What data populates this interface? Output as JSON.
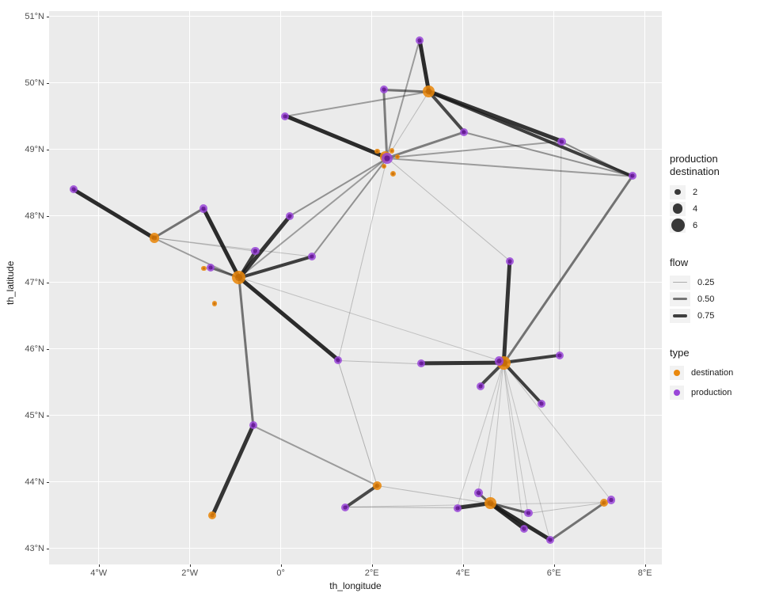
{
  "axes": {
    "x": {
      "title": "th_longitude",
      "ticks": [
        {
          "label": "4°W",
          "value": -4
        },
        {
          "label": "2°W",
          "value": -2
        },
        {
          "label": "0°",
          "value": 0
        },
        {
          "label": "2°E",
          "value": 2
        },
        {
          "label": "4°E",
          "value": 4
        },
        {
          "label": "6°E",
          "value": 6
        },
        {
          "label": "8°E",
          "value": 8
        }
      ]
    },
    "y": {
      "title": "th_latitude",
      "ticks": [
        {
          "label": "43°N",
          "value": 43
        },
        {
          "label": "44°N",
          "value": 44
        },
        {
          "label": "45°N",
          "value": 45
        },
        {
          "label": "46°N",
          "value": 46
        },
        {
          "label": "47°N",
          "value": 47
        },
        {
          "label": "48°N",
          "value": 48
        },
        {
          "label": "49°N",
          "value": 49
        },
        {
          "label": "50°N",
          "value": 50
        },
        {
          "label": "51°N",
          "value": 51
        }
      ]
    }
  },
  "legend": {
    "size": {
      "title_line1": "production",
      "title_line2": "destination",
      "entries": [
        {
          "label": "2",
          "value": 2
        },
        {
          "label": "4",
          "value": 4
        },
        {
          "label": "6",
          "value": 6
        }
      ]
    },
    "flow": {
      "title": "flow",
      "entries": [
        {
          "label": "0.25",
          "value": 0.25
        },
        {
          "label": "0.50",
          "value": 0.5
        },
        {
          "label": "0.75",
          "value": 0.75
        }
      ]
    },
    "type": {
      "title": "type",
      "entries": [
        {
          "label": "destination",
          "color": "#E9880D"
        },
        {
          "label": "production",
          "color": "#9946D8"
        }
      ]
    }
  },
  "colors": {
    "production": "#9946D8",
    "destination": "#E9880D",
    "panel_bg": "#EBEBEB",
    "grid": "#FFFFFF",
    "edge": "#1A1A1A",
    "tick_text": "#4D4D4D"
  },
  "chart_data": {
    "type": "scatter",
    "subtype": "flow-network-map",
    "xlabel": "th_longitude",
    "ylabel": "th_latitude",
    "xlim": [
      -5.09,
      8.37
    ],
    "ylim": [
      42.76,
      51.08
    ],
    "grid": "major-white-on-gray",
    "legend_position": "right",
    "nodes": [
      {
        "id": "p1",
        "lon": -4.55,
        "lat": 48.4,
        "type": "production",
        "size": 3
      },
      {
        "id": "p2",
        "lon": -1.7,
        "lat": 48.11,
        "type": "production",
        "size": 3
      },
      {
        "id": "p3",
        "lon": 0.1,
        "lat": 49.5,
        "type": "production",
        "size": 3
      },
      {
        "id": "p4",
        "lon": 3.05,
        "lat": 50.64,
        "type": "production",
        "size": 3
      },
      {
        "id": "p5",
        "lon": 2.26,
        "lat": 49.9,
        "type": "production",
        "size": 3
      },
      {
        "id": "p6",
        "lon": 4.03,
        "lat": 49.26,
        "type": "production",
        "size": 3
      },
      {
        "id": "p7",
        "lon": 6.17,
        "lat": 49.12,
        "type": "production",
        "size": 3
      },
      {
        "id": "p8",
        "lon": 7.72,
        "lat": 48.6,
        "type": "production",
        "size": 3
      },
      {
        "id": "p9",
        "lon": 2.33,
        "lat": 48.87,
        "type": "production",
        "size": 4.6
      },
      {
        "id": "p10",
        "lon": 0.19,
        "lat": 48.0,
        "type": "production",
        "size": 3
      },
      {
        "id": "p11",
        "lon": -0.56,
        "lat": 47.47,
        "type": "production",
        "size": 3
      },
      {
        "id": "p12",
        "lon": 0.68,
        "lat": 47.39,
        "type": "production",
        "size": 3
      },
      {
        "id": "p13",
        "lon": -1.55,
        "lat": 47.22,
        "type": "production",
        "size": 3
      },
      {
        "id": "p14",
        "lon": 5.03,
        "lat": 47.32,
        "type": "production",
        "size": 3
      },
      {
        "id": "p15",
        "lon": 1.26,
        "lat": 45.83,
        "type": "production",
        "size": 3
      },
      {
        "id": "p16",
        "lon": 3.09,
        "lat": 45.78,
        "type": "production",
        "size": 3
      },
      {
        "id": "p17",
        "lon": 4.8,
        "lat": 45.82,
        "type": "production",
        "size": 3.6
      },
      {
        "id": "p18",
        "lon": 6.13,
        "lat": 45.9,
        "type": "production",
        "size": 3
      },
      {
        "id": "p19",
        "lon": 4.39,
        "lat": 45.44,
        "type": "production",
        "size": 3
      },
      {
        "id": "p20",
        "lon": 5.73,
        "lat": 45.18,
        "type": "production",
        "size": 3
      },
      {
        "id": "p21",
        "lon": -0.61,
        "lat": 44.85,
        "type": "production",
        "size": 3
      },
      {
        "id": "p22",
        "lon": 1.42,
        "lat": 43.62,
        "type": "production",
        "size": 3
      },
      {
        "id": "p23",
        "lon": 3.88,
        "lat": 43.61,
        "type": "production",
        "size": 3
      },
      {
        "id": "p24",
        "lon": 4.34,
        "lat": 43.84,
        "type": "production",
        "size": 3.4
      },
      {
        "id": "p25",
        "lon": 5.44,
        "lat": 43.53,
        "type": "production",
        "size": 3
      },
      {
        "id": "p26",
        "lon": 5.34,
        "lat": 43.3,
        "type": "production",
        "size": 3
      },
      {
        "id": "p27",
        "lon": 5.92,
        "lat": 43.13,
        "type": "production",
        "size": 3
      },
      {
        "id": "p28",
        "lon": 7.26,
        "lat": 43.73,
        "type": "production",
        "size": 3
      },
      {
        "id": "d1",
        "lon": -2.78,
        "lat": 47.67,
        "type": "destination",
        "size": 4
      },
      {
        "id": "d2",
        "lon": -0.92,
        "lat": 47.07,
        "type": "destination",
        "size": 6
      },
      {
        "id": "d3",
        "lon": 3.25,
        "lat": 49.87,
        "type": "destination",
        "size": 5
      },
      {
        "id": "d4",
        "lon": 2.29,
        "lat": 48.89,
        "type": "destination",
        "size": 4.5
      },
      {
        "id": "d5",
        "lon": 4.9,
        "lat": 45.79,
        "type": "destination",
        "size": 6
      },
      {
        "id": "d6",
        "lon": 4.6,
        "lat": 43.68,
        "type": "destination",
        "size": 5
      },
      {
        "id": "d7",
        "lon": 2.12,
        "lat": 43.95,
        "type": "destination",
        "size": 3.4
      },
      {
        "id": "d8",
        "lon": -1.5,
        "lat": 43.5,
        "type": "destination",
        "size": 3
      },
      {
        "id": "d9",
        "lon": 7.1,
        "lat": 43.69,
        "type": "destination",
        "size": 3.2
      },
      {
        "id": "d10",
        "lon": -1.69,
        "lat": 47.21,
        "type": "destination",
        "size": 1.4
      },
      {
        "id": "d11",
        "lon": -1.46,
        "lat": 46.68,
        "type": "destination",
        "size": 1.4
      },
      {
        "id": "s1",
        "lon": 2.12,
        "lat": 48.97,
        "type": "destination",
        "size": 1.4
      },
      {
        "id": "s2",
        "lon": 2.44,
        "lat": 48.98,
        "type": "destination",
        "size": 1.4
      },
      {
        "id": "s3",
        "lon": 2.57,
        "lat": 48.89,
        "type": "destination",
        "size": 1.2
      },
      {
        "id": "s4",
        "lon": 2.27,
        "lat": 48.75,
        "type": "destination",
        "size": 1.3
      },
      {
        "id": "s5",
        "lon": 2.47,
        "lat": 48.63,
        "type": "destination",
        "size": 1.7
      }
    ],
    "edges": [
      {
        "from": "p1",
        "to": "d1",
        "flow": 0.85
      },
      {
        "from": "p2",
        "to": "d1",
        "flow": 0.5
      },
      {
        "from": "d1",
        "to": "d2",
        "flow": 0.3
      },
      {
        "from": "d2",
        "to": "p2",
        "flow": 0.9
      },
      {
        "from": "d2",
        "to": "p11",
        "flow": 0.75
      },
      {
        "from": "d2",
        "to": "p10",
        "flow": 0.8
      },
      {
        "from": "d2",
        "to": "p12",
        "flow": 0.75
      },
      {
        "from": "d2",
        "to": "p13",
        "flow": 0.55
      },
      {
        "from": "d2",
        "to": "p15",
        "flow": 0.85
      },
      {
        "from": "d2",
        "to": "p21",
        "flow": 0.5
      },
      {
        "from": "d2",
        "to": "p17",
        "flow": 0.12
      },
      {
        "from": "p9",
        "to": "d2",
        "flow": 0.3
      },
      {
        "from": "d1",
        "to": "p11",
        "flow": 0.15
      },
      {
        "from": "d1",
        "to": "p12",
        "flow": 0.15
      },
      {
        "from": "p9",
        "to": "p3",
        "flow": 0.85
      },
      {
        "from": "p3",
        "to": "d3",
        "flow": 0.3
      },
      {
        "from": "p4",
        "to": "d3",
        "flow": 0.9
      },
      {
        "from": "p4",
        "to": "p9",
        "flow": 0.3
      },
      {
        "from": "p5",
        "to": "d3",
        "flow": 0.5
      },
      {
        "from": "p5",
        "to": "p9",
        "flow": 0.45
      },
      {
        "from": "d3",
        "to": "p6",
        "flow": 0.7
      },
      {
        "from": "d3",
        "to": "p7",
        "flow": 0.8
      },
      {
        "from": "d3",
        "to": "p8",
        "flow": 0.75
      },
      {
        "from": "d3",
        "to": "p9",
        "flow": 0.15
      },
      {
        "from": "p6",
        "to": "p9",
        "flow": 0.45
      },
      {
        "from": "p6",
        "to": "p8",
        "flow": 0.35
      },
      {
        "from": "p7",
        "to": "p9",
        "flow": 0.3
      },
      {
        "from": "p7",
        "to": "p8",
        "flow": 0.4
      },
      {
        "from": "p9",
        "to": "p8",
        "flow": 0.3
      },
      {
        "from": "p9",
        "to": "p10",
        "flow": 0.35
      },
      {
        "from": "p9",
        "to": "p12",
        "flow": 0.35
      },
      {
        "from": "p9",
        "to": "p14",
        "flow": 0.15
      },
      {
        "from": "p9",
        "to": "p15",
        "flow": 0.15
      },
      {
        "from": "p7",
        "to": "p18",
        "flow": 0.15
      },
      {
        "from": "p8",
        "to": "d5",
        "flow": 0.5
      },
      {
        "from": "p14",
        "to": "d5",
        "flow": 0.8
      },
      {
        "from": "d5",
        "to": "p16",
        "flow": 0.8
      },
      {
        "from": "d5",
        "to": "p18",
        "flow": 0.75
      },
      {
        "from": "d5",
        "to": "p19",
        "flow": 0.7
      },
      {
        "from": "d5",
        "to": "p20",
        "flow": 0.75
      },
      {
        "from": "d5",
        "to": "p24",
        "flow": 0.12
      },
      {
        "from": "d5",
        "to": "d6",
        "flow": 0.12
      },
      {
        "from": "d5",
        "to": "p23",
        "flow": 0.12
      },
      {
        "from": "d5",
        "to": "p25",
        "flow": 0.12
      },
      {
        "from": "d5",
        "to": "p26",
        "flow": 0.12
      },
      {
        "from": "d5",
        "to": "p27",
        "flow": 0.12
      },
      {
        "from": "d5",
        "to": "p28",
        "flow": 0.12
      },
      {
        "from": "p21",
        "to": "d8",
        "flow": 0.8
      },
      {
        "from": "p21",
        "to": "d7",
        "flow": 0.3
      },
      {
        "from": "p15",
        "to": "p16",
        "flow": 0.15
      },
      {
        "from": "p15",
        "to": "d7",
        "flow": 0.2
      },
      {
        "from": "d7",
        "to": "p22",
        "flow": 0.7
      },
      {
        "from": "p22",
        "to": "p23",
        "flow": 0.2
      },
      {
        "from": "p22",
        "to": "d9",
        "flow": 0.12
      },
      {
        "from": "d7",
        "to": "d6",
        "flow": 0.15
      },
      {
        "from": "p23",
        "to": "d6",
        "flow": 0.8
      },
      {
        "from": "p24",
        "to": "d6",
        "flow": 0.6
      },
      {
        "from": "d6",
        "to": "p25",
        "flow": 0.6
      },
      {
        "from": "d6",
        "to": "p26",
        "flow": 0.85
      },
      {
        "from": "d6",
        "to": "p27",
        "flow": 0.9
      },
      {
        "from": "p27",
        "to": "d9",
        "flow": 0.5
      },
      {
        "from": "p25",
        "to": "d9",
        "flow": 0.15
      }
    ]
  }
}
